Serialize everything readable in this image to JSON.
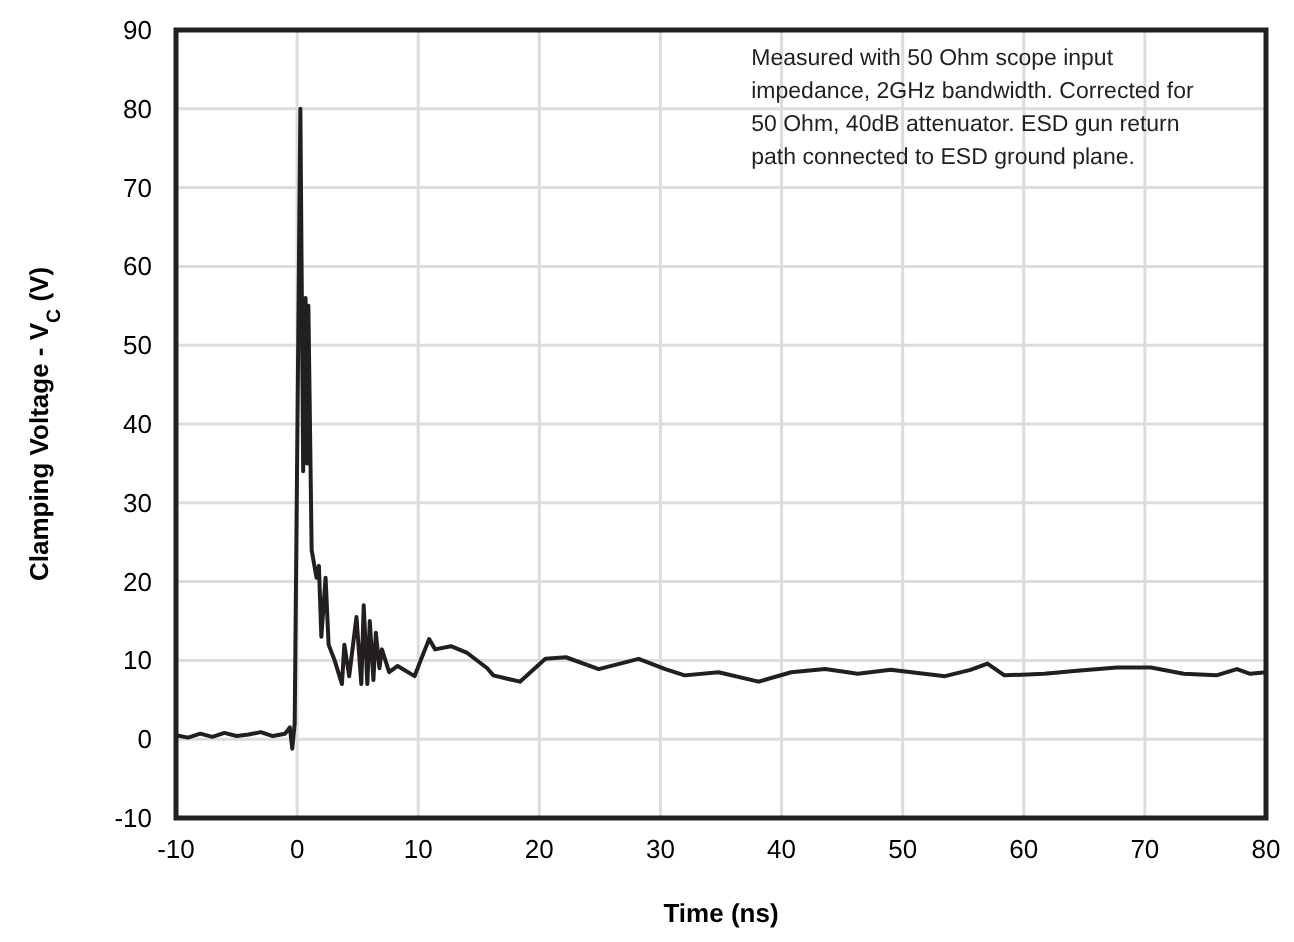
{
  "chart_data": {
    "type": "line",
    "xlabel": "Time (ns)",
    "ylabel": "Clamping Voltage - V$_{C}$ (V)",
    "annotations": [
      "Measured with 50 Ohm scope input impedance, 2GHz bandwidth. Corrected for 50 Ohm, 40dB attenuator. ESD gun return path connected to ESD ground plane."
    ],
    "xlim": [
      -10,
      80
    ],
    "xticks": [
      -10,
      0,
      10,
      20,
      30,
      40,
      50,
      60,
      70,
      80
    ],
    "ylim": [
      -10,
      90
    ],
    "yticks": [
      -10,
      0,
      10,
      20,
      30,
      40,
      50,
      60,
      70,
      80,
      90
    ],
    "grid": true,
    "marker": "none",
    "line_style": "solid",
    "series": [
      {
        "color": "#231f20",
        "x": [
          -10,
          -9,
          -8,
          -7,
          -6,
          -5,
          -4,
          -3,
          -2,
          -1,
          -0.6,
          -0.4,
          -0.2,
          0.27,
          0.5,
          0.7,
          0.82,
          0.93,
          1.2,
          1.6,
          1.8,
          2,
          2.35,
          2.6,
          3.1,
          3.7,
          3.9,
          4.3,
          4.9,
          5.3,
          5.5,
          5.8,
          6,
          6.3,
          6.5,
          6.8,
          7,
          7.6,
          8.3,
          9.7,
          10.2,
          10.9,
          11.4,
          12.7,
          14,
          15.7,
          16.2,
          18.4,
          20.5,
          22.2,
          24.9,
          28.2,
          30.4,
          32,
          34.8,
          38.1,
          40.8,
          43.6,
          46.3,
          49,
          53.5,
          55.6,
          57,
          58.4,
          61.7,
          64.4,
          67.7,
          70.5,
          73.2,
          75.9,
          77.6,
          78.7,
          80
        ],
        "values": [
          0.5,
          0.2,
          0.7,
          0.3,
          0.8,
          0.4,
          0.6,
          0.9,
          0.4,
          0.7,
          1.5,
          -1.2,
          2,
          80,
          34,
          56,
          35,
          55,
          24,
          20.5,
          22,
          13,
          20.5,
          12,
          10,
          7,
          12,
          8,
          15.5,
          7,
          17,
          7,
          15,
          7.5,
          13.5,
          9,
          11.4,
          8.5,
          9.3,
          8,
          10,
          12.7,
          11.4,
          11.8,
          11,
          9,
          8.1,
          7.3,
          10.2,
          10.4,
          8.9,
          10.2,
          8.9,
          8.1,
          8.5,
          7.3,
          8.5,
          8.9,
          8.3,
          8.8,
          8,
          8.8,
          9.6,
          8.1,
          8.3,
          8.7,
          9.1,
          9.1,
          8.3,
          8.1,
          8.9,
          8.3,
          8.5
        ]
      }
    ]
  }
}
